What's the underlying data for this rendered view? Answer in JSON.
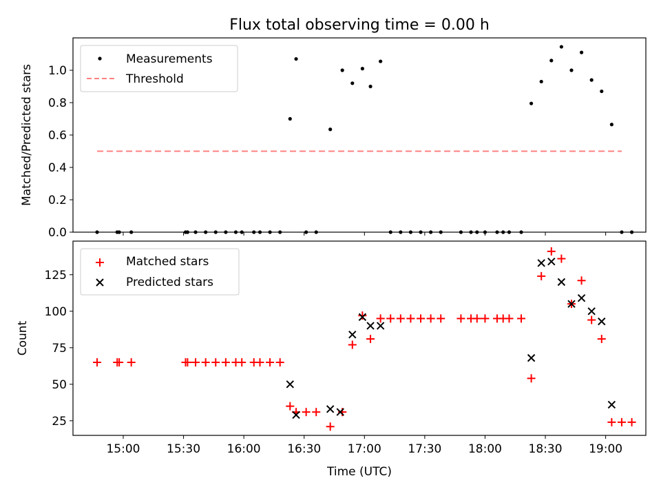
{
  "title": "Flux total observing time = 0.00 h",
  "colors": {
    "measurement": "#000000",
    "threshold": "#ff8080",
    "matched": "#ff0000",
    "predicted": "#000000"
  },
  "chart_data": [
    {
      "type": "scatter",
      "ylabel": "Matched/Predicted stars",
      "ylim": [
        0,
        1.2
      ],
      "y_ticks": [
        "0.0",
        "0.2",
        "0.4",
        "0.6",
        "0.8",
        "1.0"
      ],
      "legend": {
        "location": "top-left",
        "entries": [
          "Measurements",
          "Threshold"
        ]
      },
      "series": [
        {
          "name": "Measurements",
          "marker": "dot",
          "x": [
            "14:47",
            "14:57",
            "14:58",
            "15:04",
            "15:31",
            "15:32",
            "15:36",
            "15:41",
            "15:46",
            "15:51",
            "15:56",
            "15:59",
            "16:05",
            "16:08",
            "16:13",
            "16:18",
            "16:23",
            "16:26",
            "16:31",
            "16:36",
            "16:43",
            "16:49",
            "16:54",
            "16:59",
            "17:03",
            "17:08",
            "17:13",
            "17:18",
            "17:23",
            "17:28",
            "17:33",
            "17:38",
            "17:48",
            "17:53",
            "17:56",
            "18:00",
            "18:06",
            "18:09",
            "18:12",
            "18:18",
            "18:23",
            "18:28",
            "18:33",
            "18:38",
            "18:43",
            "18:48",
            "18:53",
            "18:58",
            "19:03",
            "19:08",
            "19:13"
          ],
          "y": [
            0,
            0,
            0,
            0,
            0,
            0,
            0,
            0,
            0,
            0,
            0,
            0,
            0,
            0,
            0,
            0,
            0.7,
            1.07,
            0,
            0,
            0.635,
            1.0,
            0.92,
            1.01,
            0.9,
            1.055,
            0,
            0,
            0,
            0,
            0,
            0,
            0,
            0,
            0,
            0,
            0,
            0,
            0,
            0,
            0.795,
            0.93,
            1.06,
            1.145,
            1.0,
            1.11,
            0.94,
            0.87,
            0.665,
            0,
            0
          ]
        },
        {
          "name": "Threshold",
          "type": "line",
          "style": "dashed",
          "x": [
            "14:47",
            "19:08"
          ],
          "y": [
            0.5,
            0.5
          ]
        }
      ]
    },
    {
      "type": "scatter",
      "xlabel": "Time (UTC)",
      "ylabel": "Count",
      "ylim": [
        15,
        148
      ],
      "y_ticks": [
        "25",
        "50",
        "75",
        "100",
        "125"
      ],
      "x_ticks": [
        "15:00",
        "15:30",
        "16:00",
        "16:30",
        "17:00",
        "17:30",
        "18:00",
        "18:30",
        "19:00"
      ],
      "xlim": [
        "14:35",
        "19:20"
      ],
      "legend": {
        "location": "top-left",
        "entries": [
          "Matched stars",
          "Predicted stars"
        ]
      },
      "series": [
        {
          "name": "Matched stars",
          "marker": "plus",
          "x": [
            "14:47",
            "14:57",
            "14:58",
            "15:04",
            "15:31",
            "15:32",
            "15:36",
            "15:41",
            "15:46",
            "15:51",
            "15:56",
            "15:59",
            "16:05",
            "16:08",
            "16:13",
            "16:18",
            "16:23",
            "16:26",
            "16:31",
            "16:36",
            "16:43",
            "16:49",
            "16:54",
            "16:59",
            "17:03",
            "17:08",
            "17:13",
            "17:18",
            "17:23",
            "17:28",
            "17:33",
            "17:38",
            "17:48",
            "17:53",
            "17:56",
            "18:00",
            "18:06",
            "18:09",
            "18:12",
            "18:18",
            "18:23",
            "18:28",
            "18:33",
            "18:38",
            "18:43",
            "18:48",
            "18:53",
            "18:58",
            "19:03",
            "19:08",
            "19:13"
          ],
          "y": [
            65,
            65,
            65,
            65,
            65,
            65,
            65,
            65,
            65,
            65,
            65,
            65,
            65,
            65,
            65,
            65,
            35,
            31,
            31,
            31,
            21,
            31,
            77,
            97,
            81,
            95,
            95,
            95,
            95,
            95,
            95,
            95,
            95,
            95,
            95,
            95,
            95,
            95,
            95,
            95,
            54,
            124,
            141,
            136,
            105,
            121,
            94,
            81,
            24,
            24,
            24
          ]
        },
        {
          "name": "Predicted stars",
          "marker": "x",
          "x": [
            "16:23",
            "16:26",
            "16:43",
            "16:48",
            "16:54",
            "16:59",
            "17:03",
            "17:08",
            "18:23",
            "18:28",
            "18:33",
            "18:38",
            "18:43",
            "18:48",
            "18:53",
            "18:58",
            "19:03"
          ],
          "y": [
            50,
            29,
            33,
            31,
            84,
            96,
            90,
            90,
            68,
            133,
            134,
            120,
            105,
            109,
            100,
            93,
            36
          ]
        }
      ]
    }
  ]
}
